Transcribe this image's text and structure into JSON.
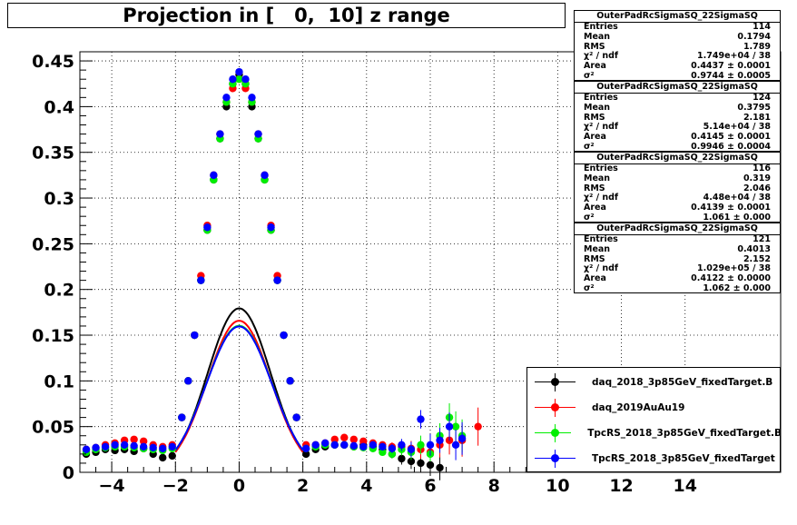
{
  "title": "Projection in [   0,  10] z range",
  "chart_data": {
    "type": "scatter",
    "title": "Projection in [   0,  10] z range",
    "xlim": [
      -5,
      17
    ],
    "ylim": [
      0,
      0.46
    ],
    "grid": true,
    "x_ticks": [
      -4,
      -2,
      0,
      2,
      4,
      6,
      8,
      10,
      12,
      14
    ],
    "x_tick_labels": [
      "−4",
      "−2",
      "0",
      "2",
      "4",
      "6",
      "8",
      "10",
      "12",
      "14"
    ],
    "y_ticks": [
      0,
      0.05,
      0.1,
      0.15,
      0.2,
      0.25,
      0.3,
      0.35,
      0.4,
      0.45
    ],
    "y_tick_labels": [
      "0",
      "0.05",
      "0.1",
      "0.15",
      "0.2",
      "0.25",
      "0.3",
      "0.35",
      "0.4",
      "0.45"
    ],
    "legend_position": "bottom-right",
    "series": [
      {
        "name": "daq_2018_3p85GeV_fixedTarget.B",
        "color": "#000000",
        "fit": {
          "area": 0.4437,
          "sigma_sq": 0.9744
        },
        "x": [
          -4.8,
          -4.5,
          -4.2,
          -3.9,
          -3.6,
          -3.3,
          -3.0,
          -2.7,
          -2.4,
          -2.1,
          -1.8,
          -1.6,
          -1.4,
          -1.2,
          -1.0,
          -0.8,
          -0.6,
          -0.4,
          -0.2,
          0.0,
          0.2,
          0.4,
          0.6,
          0.8,
          1.0,
          1.2,
          1.4,
          1.6,
          1.8,
          2.1,
          2.4,
          2.7,
          3.0,
          3.3,
          3.6,
          3.9,
          4.2,
          4.5,
          4.8,
          5.1,
          5.4,
          5.7,
          6.0,
          6.3
        ],
        "y": [
          0.02,
          0.022,
          0.025,
          0.024,
          0.025,
          0.023,
          0.026,
          0.02,
          0.016,
          0.018,
          0.06,
          0.1,
          0.15,
          0.21,
          0.265,
          0.32,
          0.365,
          0.4,
          0.425,
          0.435,
          0.425,
          0.4,
          0.365,
          0.32,
          0.265,
          0.21,
          0.15,
          0.1,
          0.06,
          0.02,
          0.025,
          0.028,
          0.03,
          0.03,
          0.028,
          0.03,
          0.028,
          0.025,
          0.02,
          0.015,
          0.012,
          0.01,
          0.008,
          0.005
        ]
      },
      {
        "name": "daq_2019AuAu19",
        "color": "#ff0000",
        "fit": {
          "area": 0.4145,
          "sigma_sq": 0.9946
        },
        "x": [
          -4.8,
          -4.5,
          -4.2,
          -3.9,
          -3.6,
          -3.3,
          -3.0,
          -2.7,
          -2.4,
          -2.1,
          -1.8,
          -1.6,
          -1.4,
          -1.2,
          -1.0,
          -0.8,
          -0.6,
          -0.4,
          -0.2,
          0.0,
          0.2,
          0.4,
          0.6,
          0.8,
          1.0,
          1.2,
          1.4,
          1.6,
          1.8,
          2.1,
          2.4,
          2.7,
          3.0,
          3.3,
          3.6,
          3.9,
          4.2,
          4.5,
          4.8,
          5.1,
          5.4,
          5.7,
          6.0,
          6.3,
          6.6,
          7.0,
          7.5
        ],
        "y": [
          0.025,
          0.027,
          0.03,
          0.032,
          0.035,
          0.036,
          0.034,
          0.03,
          0.028,
          0.03,
          0.06,
          0.1,
          0.15,
          0.215,
          0.27,
          0.325,
          0.37,
          0.405,
          0.42,
          0.43,
          0.42,
          0.405,
          0.37,
          0.325,
          0.27,
          0.215,
          0.15,
          0.1,
          0.06,
          0.03,
          0.03,
          0.032,
          0.036,
          0.038,
          0.036,
          0.034,
          0.032,
          0.03,
          0.028,
          0.028,
          0.026,
          0.025,
          0.022,
          0.03,
          0.035,
          0.035,
          0.05
        ]
      },
      {
        "name": "TpcRS_2018_3p85GeV_fixedTarget.B",
        "color": "#00ee00",
        "fit": {
          "area": 0.4139,
          "sigma_sq": 1.061
        },
        "x": [
          -4.8,
          -4.5,
          -4.2,
          -3.9,
          -3.6,
          -3.3,
          -3.0,
          -2.7,
          -2.4,
          -2.1,
          -1.8,
          -1.6,
          -1.4,
          -1.2,
          -1.0,
          -0.8,
          -0.6,
          -0.4,
          -0.2,
          0.0,
          0.2,
          0.4,
          0.6,
          0.8,
          1.0,
          1.2,
          1.4,
          1.6,
          1.8,
          2.1,
          2.4,
          2.7,
          3.0,
          3.3,
          3.6,
          3.9,
          4.2,
          4.5,
          4.8,
          5.1,
          5.4,
          5.7,
          6.0,
          6.3,
          6.6,
          6.8,
          7.0
        ],
        "y": [
          0.022,
          0.025,
          0.027,
          0.028,
          0.028,
          0.027,
          0.026,
          0.025,
          0.024,
          0.026,
          0.06,
          0.1,
          0.15,
          0.21,
          0.265,
          0.32,
          0.365,
          0.405,
          0.425,
          0.43,
          0.425,
          0.405,
          0.365,
          0.32,
          0.265,
          0.21,
          0.15,
          0.1,
          0.06,
          0.026,
          0.028,
          0.03,
          0.03,
          0.03,
          0.028,
          0.027,
          0.026,
          0.022,
          0.02,
          0.025,
          0.022,
          0.03,
          0.02,
          0.04,
          0.06,
          0.05,
          0.04
        ]
      },
      {
        "name": "TpcRS_2018_3p85GeV_fixedTarget",
        "color": "#0000ff",
        "fit": {
          "area": 0.4122,
          "sigma_sq": 1.062
        },
        "x": [
          -4.8,
          -4.5,
          -4.2,
          -3.9,
          -3.6,
          -3.3,
          -3.0,
          -2.7,
          -2.4,
          -2.1,
          -1.8,
          -1.6,
          -1.4,
          -1.2,
          -1.0,
          -0.8,
          -0.6,
          -0.4,
          -0.2,
          0.0,
          0.2,
          0.4,
          0.6,
          0.8,
          1.0,
          1.2,
          1.4,
          1.6,
          1.8,
          2.1,
          2.4,
          2.7,
          3.0,
          3.3,
          3.6,
          3.9,
          4.2,
          4.5,
          4.8,
          5.1,
          5.4,
          5.7,
          6.0,
          6.3,
          6.6,
          6.8,
          7.0
        ],
        "y": [
          0.025,
          0.027,
          0.028,
          0.03,
          0.03,
          0.029,
          0.028,
          0.027,
          0.026,
          0.028,
          0.06,
          0.1,
          0.15,
          0.21,
          0.268,
          0.325,
          0.37,
          0.41,
          0.43,
          0.438,
          0.43,
          0.41,
          0.37,
          0.325,
          0.268,
          0.21,
          0.15,
          0.1,
          0.06,
          0.026,
          0.03,
          0.032,
          0.03,
          0.03,
          0.029,
          0.028,
          0.03,
          0.028,
          0.026,
          0.03,
          0.025,
          0.058,
          0.03,
          0.035,
          0.05,
          0.03,
          0.037
        ]
      }
    ]
  },
  "stat_boxes": [
    {
      "name": "OuterPadRcSigmaSQ_22SigmaSQ",
      "entries": "114",
      "mean": "0.1794",
      "rms": "1.789",
      "chi2ndf": "1.749e+04 / 38",
      "area": "0.4437 ± 0.0001",
      "sigma": "0.9744 ± 0.0005"
    },
    {
      "name": "OuterPadRcSigmaSQ_22SigmaSQ",
      "entries": "124",
      "mean": "0.3795",
      "rms": "2.181",
      "chi2ndf": "5.14e+04 / 38",
      "area": "0.4145 ± 0.0001",
      "sigma": "0.9946 ± 0.0004"
    },
    {
      "name": "OuterPadRcSigmaSQ_22SigmaSQ",
      "entries": "116",
      "mean": "0.319",
      "rms": "2.046",
      "chi2ndf": "4.48e+04 / 38",
      "area": "0.4139 ± 0.0001",
      "sigma": "1.061 ± 0.000"
    },
    {
      "name": "OuterPadRcSigmaSQ_22SigmaSQ",
      "entries": "121",
      "mean": "0.4013",
      "rms": "2.152",
      "chi2ndf": "1.029e+05 / 38",
      "area": "0.4122 ± 0.0000",
      "sigma": "1.062 ± 0.000"
    }
  ],
  "stat_labels": {
    "entries": "Entries",
    "mean": "Mean",
    "rms": "RMS",
    "chi2": "χ² / ndf",
    "area": "Area",
    "sigma": "σ²"
  },
  "legend": [
    {
      "label": "daq_2018_3p85GeV_fixedTarget.B",
      "color": "#000000"
    },
    {
      "label": "daq_2019AuAu19",
      "color": "#ff0000"
    },
    {
      "label": "TpcRS_2018_3p85GeV_fixedTarget.B",
      "color": "#00ee00"
    },
    {
      "label": "TpcRS_2018_3p85GeV_fixedTarget",
      "color": "#0000ff"
    }
  ]
}
